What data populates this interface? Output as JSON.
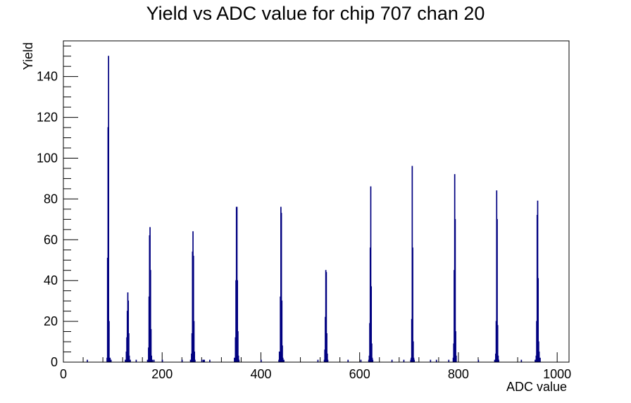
{
  "chart_data": {
    "type": "bar",
    "title": "Yield vs ADC value for chip 707 chan 20",
    "xlabel": "ADC value",
    "ylabel": "Yield",
    "xlim": [
      0,
      1024
    ],
    "ylim": [
      0,
      157.5
    ],
    "x_ticks": [
      0,
      200,
      400,
      600,
      800,
      1000
    ],
    "y_ticks": [
      0,
      20,
      40,
      60,
      80,
      100,
      120,
      140
    ],
    "grid": false,
    "legend": "none",
    "line_color": "#000080",
    "series": [
      {
        "bins": [
          [
            48,
            1
          ],
          [
            88,
            2
          ],
          [
            89,
            51
          ],
          [
            90,
            115
          ],
          [
            91,
            150
          ],
          [
            92,
            20
          ],
          [
            94,
            2
          ],
          [
            96,
            1
          ],
          [
            125,
            1
          ],
          [
            127,
            5
          ],
          [
            128,
            12
          ],
          [
            129,
            25
          ],
          [
            130,
            34
          ],
          [
            131,
            30
          ],
          [
            132,
            14
          ],
          [
            133,
            3
          ],
          [
            135,
            1
          ],
          [
            147,
            1
          ],
          [
            170,
            1
          ],
          [
            172,
            7
          ],
          [
            173,
            32
          ],
          [
            174,
            62
          ],
          [
            175,
            66
          ],
          [
            176,
            45
          ],
          [
            177,
            16
          ],
          [
            178,
            3
          ],
          [
            180,
            1
          ],
          [
            183,
            1
          ],
          [
            200,
            1
          ],
          [
            240,
            1
          ],
          [
            257,
            1
          ],
          [
            259,
            4
          ],
          [
            260,
            14
          ],
          [
            261,
            54
          ],
          [
            262,
            64
          ],
          [
            263,
            52
          ],
          [
            264,
            20
          ],
          [
            265,
            5
          ],
          [
            266,
            1
          ],
          [
            280,
            1
          ],
          [
            283,
            1
          ],
          [
            285,
            1
          ],
          [
            296,
            1
          ],
          [
            346,
            2
          ],
          [
            348,
            12
          ],
          [
            349,
            40
          ],
          [
            350,
            76
          ],
          [
            351,
            76
          ],
          [
            352,
            40
          ],
          [
            353,
            15
          ],
          [
            354,
            3
          ],
          [
            355,
            1
          ],
          [
            400,
            1
          ],
          [
            436,
            1
          ],
          [
            437,
            5
          ],
          [
            439,
            32
          ],
          [
            440,
            76
          ],
          [
            441,
            73
          ],
          [
            442,
            30
          ],
          [
            443,
            8
          ],
          [
            444,
            2
          ],
          [
            446,
            1
          ],
          [
            515,
            1
          ],
          [
            528,
            1
          ],
          [
            529,
            6
          ],
          [
            530,
            22
          ],
          [
            531,
            45
          ],
          [
            532,
            44
          ],
          [
            533,
            14
          ],
          [
            534,
            4
          ],
          [
            535,
            1
          ],
          [
            576,
            1
          ],
          [
            602,
            1
          ],
          [
            618,
            1
          ],
          [
            619,
            3
          ],
          [
            620,
            19
          ],
          [
            621,
            56
          ],
          [
            622,
            86
          ],
          [
            623,
            37
          ],
          [
            624,
            9
          ],
          [
            625,
            2
          ],
          [
            626,
            1
          ],
          [
            665,
            1
          ],
          [
            689,
            1
          ],
          [
            703,
            1
          ],
          [
            704,
            2
          ],
          [
            705,
            21
          ],
          [
            706,
            96
          ],
          [
            707,
            56
          ],
          [
            708,
            10
          ],
          [
            709,
            2
          ],
          [
            710,
            1
          ],
          [
            743,
            1
          ],
          [
            755,
            1
          ],
          [
            780,
            1
          ],
          [
            789,
            2
          ],
          [
            790,
            9
          ],
          [
            791,
            45
          ],
          [
            792,
            92
          ],
          [
            793,
            70
          ],
          [
            794,
            15
          ],
          [
            795,
            3
          ],
          [
            840,
            1
          ],
          [
            873,
            1
          ],
          [
            875,
            4
          ],
          [
            876,
            20
          ],
          [
            877,
            84
          ],
          [
            878,
            70
          ],
          [
            879,
            18
          ],
          [
            880,
            3
          ],
          [
            881,
            1
          ],
          [
            927,
            1
          ],
          [
            955,
            1
          ],
          [
            957,
            3
          ],
          [
            958,
            20
          ],
          [
            959,
            72
          ],
          [
            960,
            79
          ],
          [
            961,
            41
          ],
          [
            962,
            10
          ],
          [
            963,
            5
          ],
          [
            965,
            2
          ]
        ]
      }
    ]
  }
}
